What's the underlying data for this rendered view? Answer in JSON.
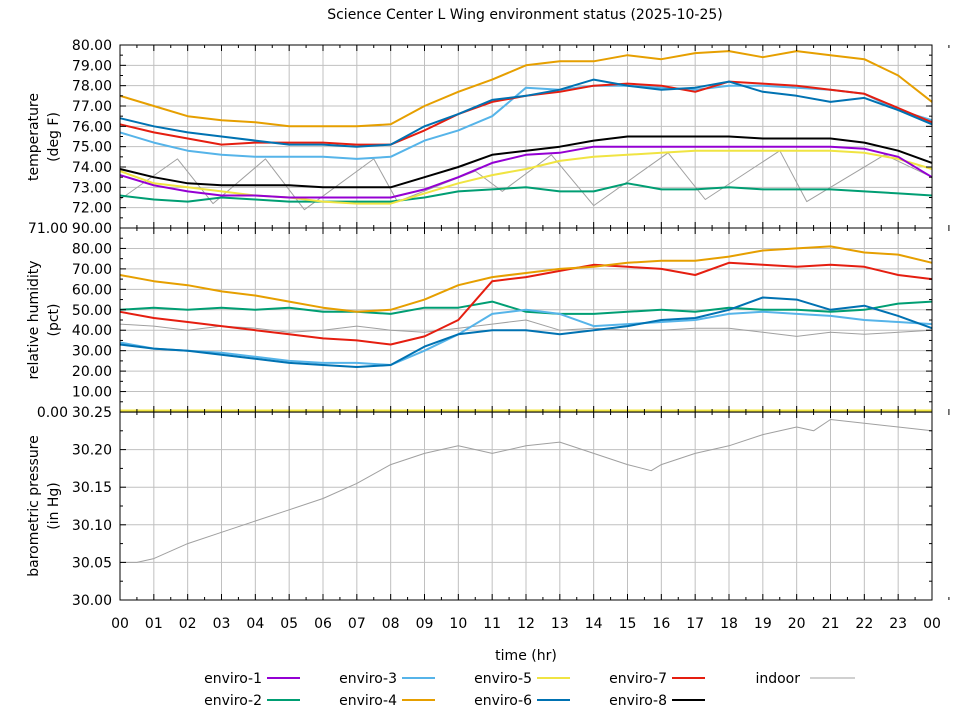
{
  "chart_data": {
    "type": "line",
    "title": "Science Center L Wing environment status (2025-10-25)",
    "xlabel": "time (hr)",
    "x_ticks": [
      "00",
      "01",
      "02",
      "03",
      "04",
      "05",
      "06",
      "07",
      "08",
      "09",
      "10",
      "11",
      "12",
      "13",
      "14",
      "15",
      "16",
      "17",
      "18",
      "19",
      "20",
      "21",
      "22",
      "23",
      "00"
    ],
    "xlim": [
      0,
      24
    ],
    "grid": true,
    "legend_placement": "bottom",
    "legend": [
      {
        "name": "enviro-1",
        "color": "#9400d3"
      },
      {
        "name": "enviro-2",
        "color": "#009e73"
      },
      {
        "name": "enviro-3",
        "color": "#56b4e9"
      },
      {
        "name": "enviro-4",
        "color": "#e69f00"
      },
      {
        "name": "enviro-5",
        "color": "#f0e442"
      },
      {
        "name": "enviro-6",
        "color": "#0072b2"
      },
      {
        "name": "enviro-7",
        "color": "#e51e10"
      },
      {
        "name": "enviro-8",
        "color": "#000000"
      },
      {
        "name": "indoor",
        "color": "#a0a0a0"
      }
    ],
    "panels": [
      {
        "ylabel": [
          "temperature",
          "(deg F)"
        ],
        "ylim": [
          71,
          80
        ],
        "y_ticks": [
          "71.00",
          "72.00",
          "73.00",
          "74.00",
          "75.00",
          "76.00",
          "77.00",
          "78.00",
          "79.00",
          "80.00"
        ],
        "series": [
          {
            "name": "indoor",
            "x": [
              0,
              1.7,
              2.75,
              4.3,
              5.45,
              7.5,
              8.2,
              10.5,
              11.3,
              12.75,
              14,
              16.2,
              17.3,
              19.5,
              20.3,
              22.6,
              24
            ],
            "y": [
              72.4,
              74.4,
              72.2,
              74.4,
              71.9,
              74.4,
              72.3,
              73.8,
              72.8,
              74.6,
              72.1,
              74.7,
              72.4,
              74.8,
              72.3,
              74.6,
              73.5
            ]
          },
          {
            "name": "enviro-2",
            "x": [
              0,
              1,
              2,
              3,
              4,
              5,
              6,
              7,
              8,
              9,
              10,
              11,
              12,
              13,
              14,
              15,
              16,
              17,
              18,
              19,
              20,
              21,
              22,
              23,
              24
            ],
            "y": [
              72.6,
              72.4,
              72.3,
              72.5,
              72.4,
              72.3,
              72.3,
              72.3,
              72.3,
              72.5,
              72.8,
              72.9,
              73.0,
              72.8,
              72.8,
              73.2,
              72.9,
              72.9,
              73.0,
              72.9,
              72.9,
              72.9,
              72.8,
              72.7,
              72.6
            ]
          },
          {
            "name": "enviro-5",
            "x": [
              0,
              1,
              2,
              3,
              4,
              5,
              6,
              7,
              8,
              9,
              10,
              11,
              12,
              13,
              14,
              15,
              16,
              17,
              18,
              19,
              20,
              21,
              22,
              23,
              24
            ],
            "y": [
              73.8,
              73.2,
              73.0,
              72.8,
              72.6,
              72.5,
              72.3,
              72.2,
              72.2,
              72.7,
              73.2,
              73.6,
              73.9,
              74.3,
              74.5,
              74.6,
              74.7,
              74.8,
              74.8,
              74.8,
              74.8,
              74.8,
              74.7,
              74.4,
              73.9
            ]
          },
          {
            "name": "enviro-1",
            "x": [
              0,
              1,
              2,
              3,
              4,
              5,
              6,
              7,
              8,
              9,
              10,
              11,
              12,
              13,
              14,
              15,
              16,
              17,
              18,
              19,
              20,
              21,
              22,
              23,
              24
            ],
            "y": [
              73.6,
              73.1,
              72.8,
              72.6,
              72.6,
              72.5,
              72.5,
              72.5,
              72.5,
              72.9,
              73.5,
              74.2,
              74.6,
              74.7,
              75.0,
              75.0,
              75.0,
              75.0,
              75.0,
              75.0,
              75.0,
              75.0,
              74.9,
              74.5,
              73.5
            ]
          },
          {
            "name": "enviro-8",
            "x": [
              0,
              1,
              2,
              3,
              4,
              5,
              6,
              7,
              8,
              9,
              10,
              11,
              12,
              13,
              14,
              15,
              16,
              17,
              18,
              19,
              20,
              21,
              22,
              23,
              24
            ],
            "y": [
              73.9,
              73.5,
              73.2,
              73.1,
              73.1,
              73.1,
              73.0,
              73.0,
              73.0,
              73.5,
              74.0,
              74.6,
              74.8,
              75.0,
              75.3,
              75.5,
              75.5,
              75.5,
              75.5,
              75.4,
              75.4,
              75.4,
              75.2,
              74.8,
              74.2
            ]
          },
          {
            "name": "enviro-3",
            "x": [
              0,
              1,
              2,
              3,
              4,
              5,
              6,
              7,
              8,
              9,
              10,
              11,
              12,
              13,
              14,
              15,
              16,
              17,
              18,
              19,
              20,
              21,
              22,
              23,
              24
            ],
            "y": [
              75.7,
              75.2,
              74.8,
              74.6,
              74.5,
              74.5,
              74.5,
              74.4,
              74.5,
              75.3,
              75.8,
              76.5,
              77.9,
              77.8,
              78.0,
              78.0,
              77.9,
              77.8,
              78.0,
              78.0,
              77.9,
              77.8,
              77.6,
              76.8,
              76.3
            ]
          },
          {
            "name": "enviro-7",
            "x": [
              0,
              1,
              2,
              3,
              4,
              5,
              6,
              7,
              8,
              9,
              10,
              11,
              12,
              13,
              14,
              15,
              16,
              17,
              18,
              19,
              20,
              21,
              22,
              23,
              24
            ],
            "y": [
              76.1,
              75.7,
              75.4,
              75.1,
              75.2,
              75.2,
              75.2,
              75.1,
              75.1,
              75.8,
              76.6,
              77.2,
              77.5,
              77.7,
              78.0,
              78.1,
              78.0,
              77.7,
              78.2,
              78.1,
              78.0,
              77.8,
              77.6,
              76.9,
              76.2
            ]
          },
          {
            "name": "enviro-6",
            "x": [
              0,
              1,
              2,
              3,
              4,
              5,
              6,
              7,
              8,
              9,
              10,
              11,
              12,
              13,
              14,
              15,
              16,
              17,
              18,
              19,
              20,
              21,
              22,
              23,
              24
            ],
            "y": [
              76.4,
              76.0,
              75.7,
              75.5,
              75.3,
              75.1,
              75.1,
              75.0,
              75.1,
              76.0,
              76.6,
              77.3,
              77.5,
              77.8,
              78.3,
              78.0,
              77.8,
              77.9,
              78.2,
              77.7,
              77.5,
              77.2,
              77.4,
              76.8,
              76.1
            ]
          },
          {
            "name": "enviro-4",
            "x": [
              0,
              1,
              2,
              3,
              4,
              5,
              6,
              7,
              8,
              9,
              10,
              11,
              12,
              13,
              14,
              15,
              16,
              17,
              18,
              19,
              20,
              21,
              22,
              23,
              24
            ],
            "y": [
              77.5,
              77.0,
              76.5,
              76.3,
              76.2,
              76.0,
              76.0,
              76.0,
              76.1,
              77.0,
              77.7,
              78.3,
              79.0,
              79.2,
              79.2,
              79.5,
              79.3,
              79.6,
              79.7,
              79.4,
              79.7,
              79.5,
              79.3,
              78.5,
              77.2
            ]
          }
        ]
      },
      {
        "ylabel": [
          "relative humidity",
          "(pct)"
        ],
        "ylim": [
          0,
          90
        ],
        "y_ticks": [
          "0.00",
          "10.00",
          "20.00",
          "30.00",
          "40.00",
          "50.00",
          "60.00",
          "70.00",
          "80.00",
          "90.00"
        ],
        "series": [
          {
            "name": "enviro-8",
            "x": [
              0,
              24
            ],
            "y": [
              0.3,
              0.3
            ]
          },
          {
            "name": "enviro-5",
            "x": [
              0,
              24
            ],
            "y": [
              0.6,
              0.6
            ]
          },
          {
            "name": "indoor",
            "x": [
              0,
              1,
              2,
              3,
              4,
              5,
              6,
              7,
              8,
              9,
              10,
              11,
              12,
              13,
              14,
              15,
              16,
              17,
              18,
              19,
              20,
              21,
              22,
              23,
              24
            ],
            "y": [
              43,
              42,
              40,
              42,
              41,
              39,
              40,
              42,
              40,
              39,
              41,
              43,
              45,
              40,
              41,
              40,
              40,
              41,
              41,
              39,
              37,
              39,
              38,
              39,
              40
            ]
          },
          {
            "name": "enviro-2",
            "x": [
              0,
              1,
              2,
              3,
              4,
              5,
              6,
              7,
              8,
              9,
              10,
              11,
              12,
              13,
              14,
              15,
              16,
              17,
              18,
              19,
              20,
              21,
              22,
              23,
              24
            ],
            "y": [
              50,
              51,
              50,
              51,
              50,
              51,
              49,
              49,
              48,
              51,
              51,
              54,
              49,
              48,
              48,
              49,
              50,
              49,
              51,
              50,
              50,
              49,
              50,
              53,
              54
            ]
          },
          {
            "name": "enviro-3",
            "x": [
              0,
              1,
              2,
              3,
              4,
              5,
              6,
              7,
              8,
              9,
              10,
              11,
              12,
              13,
              14,
              15,
              16,
              17,
              18,
              19,
              20,
              21,
              22,
              23,
              24
            ],
            "y": [
              34,
              31,
              30,
              29,
              27,
              25,
              24,
              24,
              23,
              30,
              38,
              48,
              50,
              48,
              42,
              43,
              44,
              45,
              48,
              49,
              48,
              47,
              45,
              44,
              43
            ]
          },
          {
            "name": "enviro-6",
            "x": [
              0,
              1,
              2,
              3,
              4,
              5,
              6,
              7,
              8,
              9,
              10,
              11,
              12,
              13,
              14,
              15,
              16,
              17,
              18,
              19,
              20,
              21,
              22,
              23,
              24
            ],
            "y": [
              33,
              31,
              30,
              28,
              26,
              24,
              23,
              22,
              23,
              32,
              38,
              40,
              40,
              38,
              40,
              42,
              45,
              46,
              50,
              56,
              55,
              50,
              52,
              47,
              41
            ]
          },
          {
            "name": "enviro-7",
            "x": [
              0,
              1,
              2,
              3,
              4,
              5,
              6,
              7,
              8,
              9,
              10,
              11,
              12,
              13,
              14,
              15,
              16,
              17,
              18,
              19,
              20,
              21,
              22,
              23,
              24
            ],
            "y": [
              49,
              46,
              44,
              42,
              40,
              38,
              36,
              35,
              33,
              37,
              45,
              64,
              66,
              69,
              72,
              71,
              70,
              67,
              73,
              72,
              71,
              72,
              71,
              67,
              65
            ]
          },
          {
            "name": "enviro-4",
            "x": [
              0,
              1,
              2,
              3,
              4,
              5,
              6,
              7,
              8,
              9,
              10,
              11,
              12,
              13,
              14,
              15,
              16,
              17,
              18,
              19,
              20,
              21,
              22,
              23,
              24
            ],
            "y": [
              67,
              64,
              62,
              59,
              57,
              54,
              51,
              49,
              50,
              55,
              62,
              66,
              68,
              70,
              71,
              73,
              74,
              74,
              76,
              79,
              80,
              81,
              78,
              77,
              73
            ]
          }
        ]
      },
      {
        "ylabel": [
          "barometric pressure",
          "(in Hg)"
        ],
        "ylim": [
          30.0,
          30.25
        ],
        "y_ticks": [
          "30.00",
          "30.05",
          "30.10",
          "30.15",
          "30.20",
          "30.25"
        ],
        "series": [
          {
            "name": "indoor",
            "x": [
              0,
              0.5,
              1,
              2,
              3,
              4,
              5,
              6,
              7,
              8,
              9,
              10,
              11,
              12,
              13,
              14,
              15,
              15.7,
              16,
              17,
              18,
              19,
              20,
              20.5,
              21,
              22,
              23,
              24
            ],
            "y": [
              30.05,
              30.05,
              30.055,
              30.075,
              30.09,
              30.105,
              30.12,
              30.135,
              30.155,
              30.18,
              30.195,
              30.205,
              30.195,
              30.205,
              30.21,
              30.195,
              30.18,
              30.172,
              30.18,
              30.195,
              30.205,
              30.22,
              30.23,
              30.225,
              30.24,
              30.235,
              30.23,
              30.225
            ]
          }
        ]
      }
    ]
  }
}
